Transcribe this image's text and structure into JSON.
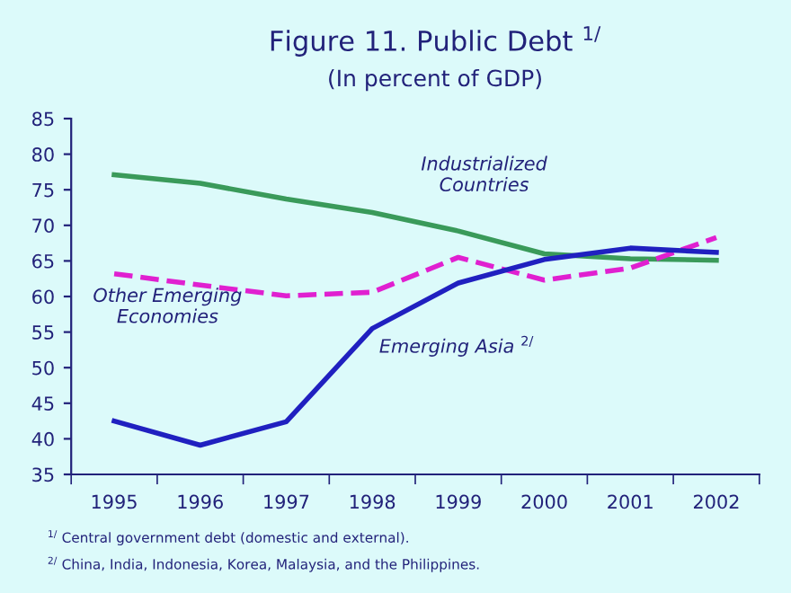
{
  "chart_data": {
    "type": "line",
    "title": "Figure 11. Public Debt $^{1/}$",
    "subtitle": "(In percent of GDP)",
    "categories": [
      "1995",
      "1996",
      "1997",
      "1998",
      "1999",
      "2000",
      "2001",
      "2002"
    ],
    "series": [
      {
        "name": "Industrialized\nCountries",
        "color": "#3a9a5a",
        "line_style": "solid",
        "values": [
          77.1,
          75.9,
          73.7,
          71.8,
          69.2,
          66.0,
          65.3,
          65.1
        ]
      },
      {
        "name": "Other Emerging\nEconomies",
        "color": "#e020d0",
        "line_style": "dashed",
        "values": [
          63.2,
          61.6,
          60.1,
          60.6,
          65.5,
          62.3,
          64.0,
          68.3
        ]
      },
      {
        "name": "Emerging Asia $^{2/}$",
        "color": "#2020c0",
        "line_style": "solid",
        "values": [
          42.5,
          39.1,
          42.4,
          55.5,
          61.9,
          65.2,
          66.8,
          66.2
        ]
      }
    ],
    "ylim": [
      35,
      85
    ],
    "yticks": [
      35,
      40,
      45,
      50,
      55,
      60,
      65,
      70,
      75,
      80,
      85
    ],
    "grid": false,
    "legend": false,
    "annotations": [
      "$^{1/}$ Central government debt (domestic and external).",
      "$^{2/}$ China, India, Indonesia, Korea, Malaysia, and the Philippines."
    ]
  }
}
